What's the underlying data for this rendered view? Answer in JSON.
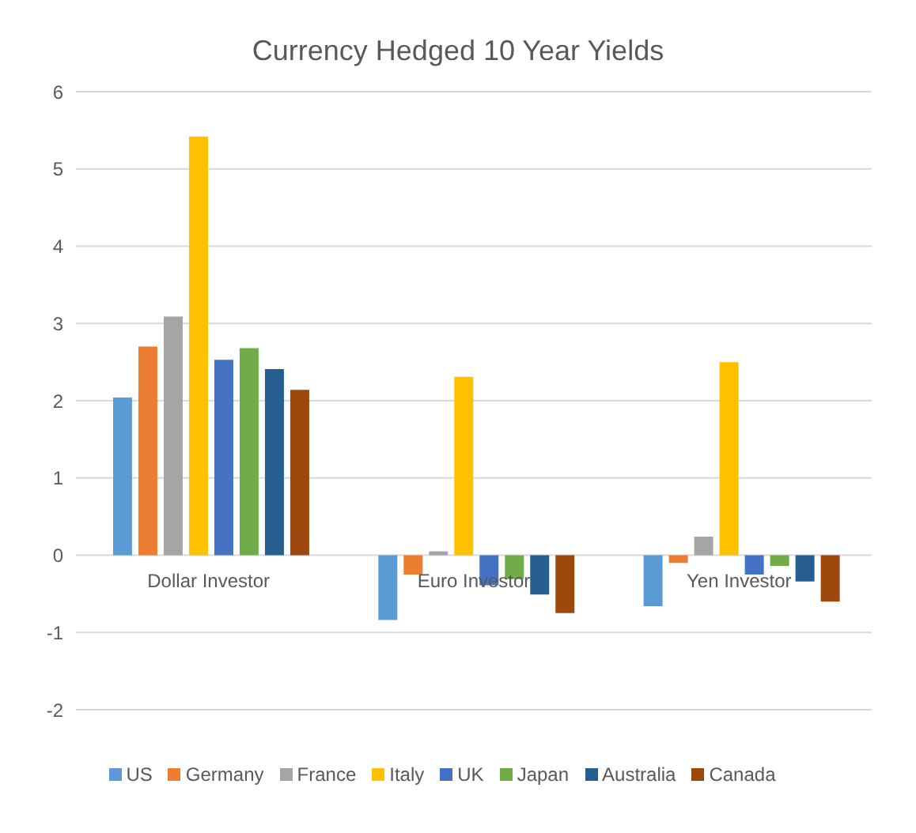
{
  "chart_data": {
    "type": "bar",
    "title": "Currency Hedged 10 Year Yields",
    "categories": [
      "Dollar Investor",
      "Euro Investor",
      "Yen Investor"
    ],
    "series": [
      {
        "name": "US",
        "color": "#5b9bd5",
        "values": [
          2.04,
          -0.84,
          -0.66
        ]
      },
      {
        "name": "Germany",
        "color": "#ed7d31",
        "values": [
          2.7,
          -0.25,
          -0.1
        ]
      },
      {
        "name": "France",
        "color": "#a5a5a5",
        "values": [
          3.09,
          0.05,
          0.24
        ]
      },
      {
        "name": "Italy",
        "color": "#ffc000",
        "values": [
          5.42,
          2.31,
          2.5
        ]
      },
      {
        "name": "UK",
        "color": "#4472c4",
        "values": [
          2.53,
          -0.39,
          -0.25
        ]
      },
      {
        "name": "Japan",
        "color": "#70ad47",
        "values": [
          2.68,
          -0.31,
          -0.14
        ]
      },
      {
        "name": "Australia",
        "color": "#255e91",
        "values": [
          2.41,
          -0.51,
          -0.34
        ]
      },
      {
        "name": "Canada",
        "color": "#9e480e",
        "values": [
          2.14,
          -0.75,
          -0.6
        ]
      }
    ],
    "ylim": [
      -2,
      6
    ],
    "yticks": [
      -2,
      -1,
      0,
      1,
      2,
      3,
      4,
      5,
      6
    ],
    "grid": "y",
    "legend": "bottom"
  }
}
